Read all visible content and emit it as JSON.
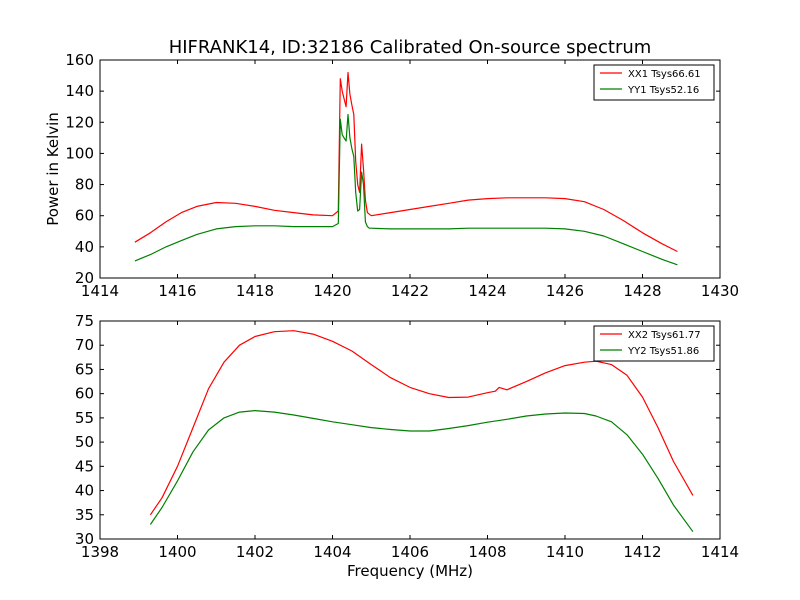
{
  "figure": {
    "title": "HIFRANK14, ID:32186 Calibrated On-source spectrum",
    "shared_xlabel": "Frequency (MHz)"
  },
  "chart_data": [
    {
      "type": "line",
      "title": "HIFRANK14, ID:32186 Calibrated On-source spectrum",
      "xlabel": "",
      "ylabel": "Power in Kelvin",
      "xlim": [
        1414,
        1430
      ],
      "ylim": [
        20,
        160
      ],
      "xticks": [
        "1414",
        "1416",
        "1418",
        "1420",
        "1422",
        "1424",
        "1426",
        "1428",
        "1430"
      ],
      "yticks": [
        "20",
        "40",
        "60",
        "80",
        "100",
        "120",
        "140",
        "160"
      ],
      "grid": false,
      "legend_position": "top-right",
      "series": [
        {
          "name": "XX1 Tsys66.61",
          "color": "#ff0000",
          "x": [
            1414.9,
            1415.3,
            1415.7,
            1416.1,
            1416.5,
            1417.0,
            1417.5,
            1418.0,
            1418.5,
            1419.0,
            1419.5,
            1420.0,
            1420.15,
            1420.2,
            1420.25,
            1420.3,
            1420.35,
            1420.4,
            1420.45,
            1420.5,
            1420.55,
            1420.6,
            1420.65,
            1420.7,
            1420.75,
            1420.8,
            1420.85,
            1420.9,
            1420.95,
            1421.0,
            1421.5,
            1422.0,
            1422.5,
            1423.0,
            1423.5,
            1424.0,
            1424.5,
            1425.0,
            1425.5,
            1426.0,
            1426.5,
            1427.0,
            1427.5,
            1428.0,
            1428.5,
            1428.9
          ],
          "y": [
            43,
            49,
            56,
            62,
            66,
            68.5,
            68,
            66,
            63.5,
            62,
            60.5,
            60,
            63,
            148,
            140,
            135,
            130,
            152,
            138,
            131,
            125,
            95,
            80,
            75,
            106,
            90,
            70,
            62,
            61,
            60,
            62,
            64,
            66,
            68,
            70,
            71,
            71.5,
            71.5,
            71.5,
            71,
            69,
            64,
            57,
            49,
            42,
            37
          ]
        },
        {
          "name": "YY1 Tsys52.16",
          "color": "#008000",
          "x": [
            1414.9,
            1415.3,
            1415.7,
            1416.1,
            1416.5,
            1417.0,
            1417.5,
            1418.0,
            1418.5,
            1419.0,
            1419.5,
            1420.0,
            1420.15,
            1420.2,
            1420.25,
            1420.3,
            1420.35,
            1420.4,
            1420.45,
            1420.5,
            1420.55,
            1420.6,
            1420.65,
            1420.7,
            1420.75,
            1420.8,
            1420.85,
            1420.9,
            1420.95,
            1421.0,
            1421.5,
            1422.0,
            1422.5,
            1423.0,
            1423.5,
            1424.0,
            1424.5,
            1425.0,
            1425.5,
            1426.0,
            1426.5,
            1427.0,
            1427.5,
            1428.0,
            1428.5,
            1428.9
          ],
          "y": [
            31,
            35,
            40,
            44,
            48,
            51.5,
            53,
            53.5,
            53.5,
            53,
            53,
            53,
            55,
            122,
            112,
            110,
            108,
            125,
            110,
            103,
            98,
            75,
            63,
            64,
            88,
            80,
            56,
            53,
            52,
            52,
            51.5,
            51.5,
            51.5,
            51.5,
            52,
            52,
            52,
            52,
            52,
            51.5,
            50,
            47,
            42,
            37,
            32,
            28.5
          ]
        }
      ]
    },
    {
      "type": "line",
      "title": "",
      "xlabel": "Frequency (MHz)",
      "ylabel": "",
      "xlim": [
        1398,
        1414
      ],
      "ylim": [
        30,
        75
      ],
      "xticks": [
        "1398",
        "1400",
        "1402",
        "1404",
        "1406",
        "1408",
        "1410",
        "1412",
        "1414"
      ],
      "yticks": [
        "30",
        "35",
        "40",
        "45",
        "50",
        "55",
        "60",
        "65",
        "70",
        "75"
      ],
      "grid": false,
      "legend_position": "top-right",
      "series": [
        {
          "name": "XX2 Tsys61.77",
          "color": "#ff0000",
          "x": [
            1399.3,
            1399.6,
            1400.0,
            1400.4,
            1400.8,
            1401.2,
            1401.6,
            1402.0,
            1402.5,
            1403.0,
            1403.5,
            1404.0,
            1404.5,
            1405.0,
            1405.5,
            1406.0,
            1406.5,
            1407.0,
            1407.5,
            1408.0,
            1408.2,
            1408.3,
            1408.5,
            1409.0,
            1409.5,
            1410.0,
            1410.5,
            1410.8,
            1411.2,
            1411.6,
            1412.0,
            1412.4,
            1412.8,
            1413.3
          ],
          "y": [
            35,
            38.5,
            45,
            53,
            61,
            66.5,
            70,
            71.8,
            72.8,
            73,
            72.3,
            70.8,
            68.8,
            66,
            63.3,
            61.3,
            60,
            59.2,
            59.3,
            60.2,
            60.5,
            61.3,
            60.8,
            62.5,
            64.3,
            65.8,
            66.5,
            66.7,
            66,
            63.8,
            59.3,
            53,
            46,
            39
          ]
        },
        {
          "name": "YY2 Tsys51.86",
          "color": "#008000",
          "x": [
            1399.3,
            1399.6,
            1400.0,
            1400.4,
            1400.8,
            1401.2,
            1401.6,
            1402.0,
            1402.5,
            1403.0,
            1403.5,
            1404.0,
            1404.5,
            1405.0,
            1405.5,
            1406.0,
            1406.5,
            1407.0,
            1407.5,
            1408.0,
            1408.5,
            1409.0,
            1409.5,
            1410.0,
            1410.5,
            1410.8,
            1411.2,
            1411.6,
            1412.0,
            1412.4,
            1412.8,
            1413.3
          ],
          "y": [
            33,
            36.5,
            42,
            48,
            52.5,
            55,
            56.2,
            56.5,
            56.2,
            55.6,
            54.9,
            54.2,
            53.6,
            53,
            52.6,
            52.3,
            52.3,
            52.8,
            53.4,
            54.1,
            54.7,
            55.4,
            55.8,
            56.0,
            55.9,
            55.4,
            54.2,
            51.5,
            47.5,
            42.5,
            37,
            31.5
          ]
        }
      ]
    }
  ]
}
